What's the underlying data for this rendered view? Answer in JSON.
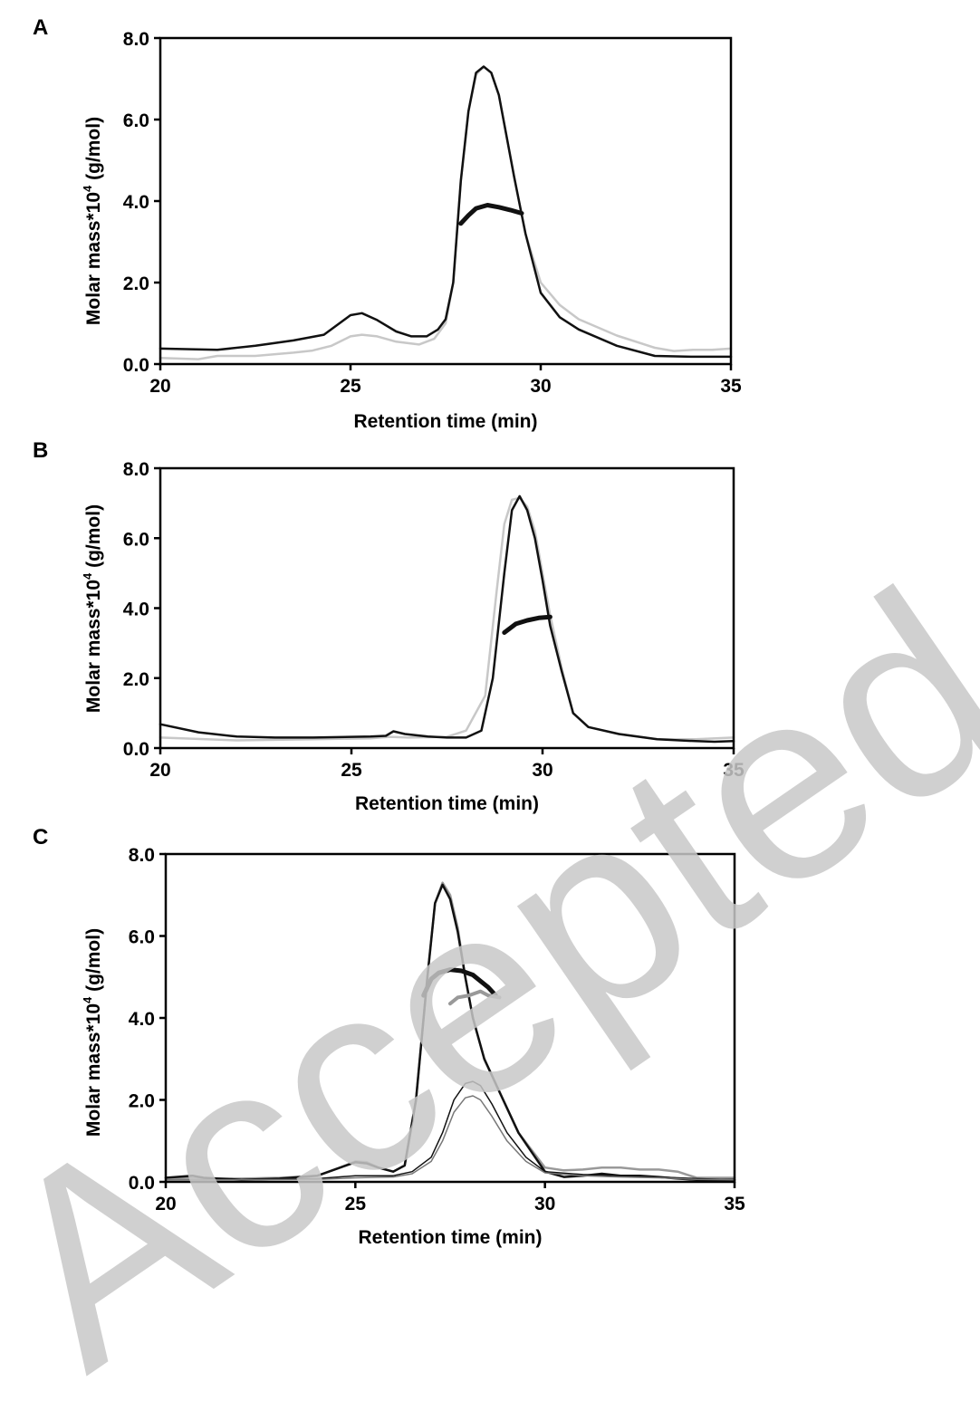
{
  "watermark": "Accepted Manuscript",
  "chart_data": [
    {
      "type": "line",
      "panel_label": "A",
      "xlabel": "Retention time (min)",
      "ylabel_main": "Molar mass*10",
      "ylabel_sup": "4",
      "ylabel_unit": " (g/mol)",
      "xlim": [
        20,
        35
      ],
      "ylim": [
        0,
        8
      ],
      "xticks": [
        20,
        25,
        30,
        35
      ],
      "xtick_labels": [
        "20",
        "25",
        "30",
        "35"
      ],
      "yticks": [
        0,
        2,
        4,
        6,
        8
      ],
      "ytick_labels": [
        "0.0",
        "2.0",
        "4.0",
        "6.0",
        "8.0"
      ],
      "series": [
        {
          "color": "#c8c8c8",
          "width": 2.5,
          "x": [
            20,
            21,
            21.5,
            22.5,
            23.5,
            24,
            24.5,
            25,
            25.3,
            25.7,
            26.2,
            26.8,
            27.2,
            27.5,
            27.7,
            27.9,
            28.1,
            28.3,
            28.5,
            28.7,
            28.9,
            29.1,
            29.3,
            29.6,
            30,
            30.5,
            31,
            32,
            33,
            33.5,
            34,
            34.5,
            35
          ],
          "y": [
            0.15,
            0.12,
            0.2,
            0.2,
            0.28,
            0.33,
            0.45,
            0.68,
            0.72,
            0.68,
            0.55,
            0.48,
            0.62,
            1.0,
            2.0,
            4.5,
            6.2,
            7.1,
            7.3,
            7.15,
            6.6,
            5.6,
            4.6,
            3.2,
            2.0,
            1.45,
            1.1,
            0.7,
            0.4,
            0.32,
            0.35,
            0.35,
            0.38
          ]
        },
        {
          "color": "#111111",
          "width": 2.5,
          "x": [
            20,
            21.5,
            22.5,
            23.5,
            24.3,
            25,
            25.3,
            25.7,
            26.2,
            26.6,
            27,
            27.3,
            27.5,
            27.7,
            27.9,
            28.1,
            28.3,
            28.5,
            28.7,
            28.9,
            29.1,
            29.3,
            29.6,
            30,
            30.5,
            31,
            32,
            33,
            34,
            35
          ],
          "y": [
            0.38,
            0.35,
            0.45,
            0.58,
            0.72,
            1.2,
            1.25,
            1.08,
            0.8,
            0.68,
            0.68,
            0.85,
            1.1,
            2.0,
            4.5,
            6.2,
            7.15,
            7.3,
            7.15,
            6.6,
            5.6,
            4.6,
            3.2,
            1.75,
            1.15,
            0.85,
            0.45,
            0.2,
            0.18,
            0.18
          ]
        },
        {
          "color": "#111111",
          "width": 5,
          "x": [
            27.9,
            28.1,
            28.3,
            28.6,
            28.9,
            29.2,
            29.5
          ],
          "y": [
            3.45,
            3.65,
            3.82,
            3.9,
            3.85,
            3.78,
            3.7
          ]
        }
      ]
    },
    {
      "type": "line",
      "panel_label": "B",
      "xlabel": "Retention time (min)",
      "ylabel_main": "Molar mass*10",
      "ylabel_sup": "4",
      "ylabel_unit": " (g/mol)",
      "xlim": [
        20,
        35
      ],
      "ylim": [
        0,
        8
      ],
      "xticks": [
        20,
        25,
        30,
        35
      ],
      "xtick_labels": [
        "20",
        "25",
        "30",
        "35"
      ],
      "yticks": [
        0,
        2,
        4,
        6,
        8
      ],
      "ytick_labels": [
        "0.0",
        "2.0",
        "4.0",
        "6.0",
        "8.0"
      ],
      "series": [
        {
          "color": "#c8c8c8",
          "width": 2.5,
          "x": [
            20,
            22,
            24,
            25.5,
            26,
            26.5,
            27.5,
            28,
            28.5,
            28.8,
            29,
            29.2,
            29.4,
            29.6,
            29.8,
            30,
            30.2,
            30.5,
            30.8,
            31.2,
            32,
            33,
            34,
            35
          ],
          "y": [
            0.3,
            0.22,
            0.25,
            0.28,
            0.32,
            0.3,
            0.32,
            0.5,
            1.5,
            4.5,
            6.4,
            7.1,
            7.15,
            6.9,
            6.2,
            5.0,
            3.8,
            2.3,
            1.0,
            0.6,
            0.4,
            0.25,
            0.25,
            0.3
          ]
        },
        {
          "color": "#111111",
          "width": 2.5,
          "x": [
            20,
            21,
            22,
            23,
            24,
            25.5,
            25.9,
            26.1,
            26.4,
            27,
            27.5,
            28,
            28.4,
            28.7,
            29,
            29.2,
            29.4,
            29.6,
            29.8,
            30,
            30.2,
            30.5,
            30.8,
            31.2,
            32,
            33,
            34,
            34.5,
            35
          ],
          "y": [
            0.68,
            0.45,
            0.33,
            0.3,
            0.3,
            0.33,
            0.35,
            0.48,
            0.4,
            0.33,
            0.3,
            0.3,
            0.5,
            2.0,
            5.0,
            6.8,
            7.2,
            6.8,
            6.0,
            4.8,
            3.5,
            2.2,
            1.0,
            0.6,
            0.4,
            0.25,
            0.2,
            0.18,
            0.2
          ]
        },
        {
          "color": "#111111",
          "width": 5,
          "x": [
            29.0,
            29.3,
            29.6,
            29.9,
            30.2
          ],
          "y": [
            3.3,
            3.55,
            3.65,
            3.72,
            3.75
          ]
        }
      ]
    },
    {
      "type": "line",
      "panel_label": "C",
      "xlabel": "Retention time (min)",
      "ylabel_main": "Molar mass*10",
      "ylabel_sup": "4",
      "ylabel_unit": " (g/mol)",
      "xlim": [
        20,
        35
      ],
      "ylim": [
        0,
        8
      ],
      "xticks": [
        20,
        25,
        30,
        35
      ],
      "xtick_labels": [
        "20",
        "25",
        "30",
        "35"
      ],
      "yticks": [
        0,
        2,
        4,
        6,
        8
      ],
      "ytick_labels": [
        "0.0",
        "2.0",
        "4.0",
        "6.0",
        "8.0"
      ],
      "series": [
        {
          "color": "#999999",
          "width": 2.5,
          "x": [
            20,
            21,
            22,
            23,
            24,
            24.6,
            25,
            25.3,
            25.6,
            26,
            26.3,
            26.6,
            26.9,
            27.1,
            27.3,
            27.5,
            27.7,
            27.9,
            28.1,
            28.4,
            28.8,
            29.3,
            30,
            30.5,
            31,
            31.5,
            32,
            32.5,
            33,
            33.5,
            34,
            35
          ],
          "y": [
            0.1,
            0.08,
            0.08,
            0.1,
            0.15,
            0.35,
            0.5,
            0.48,
            0.35,
            0.25,
            0.4,
            2.0,
            5.0,
            6.8,
            7.3,
            7.0,
            6.2,
            5.0,
            4.0,
            3.0,
            2.2,
            1.2,
            0.35,
            0.28,
            0.3,
            0.35,
            0.35,
            0.3,
            0.3,
            0.25,
            0.1,
            0.1
          ]
        },
        {
          "color": "#111111",
          "width": 2.5,
          "x": [
            20,
            20.7,
            21,
            22,
            23,
            24,
            24.6,
            25,
            25.3,
            25.6,
            26,
            26.3,
            26.6,
            26.9,
            27.1,
            27.3,
            27.5,
            27.7,
            27.9,
            28.1,
            28.4,
            28.8,
            29.3,
            30,
            30.5,
            31,
            31.5,
            32,
            32.5,
            33,
            33.5,
            34,
            35
          ],
          "y": [
            0.1,
            0.15,
            0.1,
            0.05,
            0.08,
            0.15,
            0.35,
            0.48,
            0.45,
            0.35,
            0.25,
            0.4,
            2.0,
            5.0,
            6.8,
            7.25,
            6.9,
            6.1,
            5.0,
            4.0,
            3.0,
            2.2,
            1.2,
            0.25,
            0.12,
            0.15,
            0.2,
            0.15,
            0.15,
            0.12,
            0.08,
            0.05,
            0.05
          ]
        },
        {
          "color": "#111111",
          "width": 1.5,
          "x": [
            20,
            22,
            24,
            25,
            26,
            26.5,
            27,
            27.3,
            27.6,
            27.9,
            28.1,
            28.3,
            28.6,
            29,
            29.5,
            30,
            31,
            32,
            33,
            34,
            35
          ],
          "y": [
            0.05,
            0.05,
            0.08,
            0.15,
            0.15,
            0.25,
            0.6,
            1.2,
            2.0,
            2.4,
            2.45,
            2.35,
            1.9,
            1.2,
            0.6,
            0.25,
            0.18,
            0.15,
            0.12,
            0.08,
            0.05
          ]
        },
        {
          "color": "#777777",
          "width": 1.5,
          "x": [
            20,
            22,
            24,
            25,
            26,
            26.5,
            27,
            27.3,
            27.6,
            27.9,
            28.1,
            28.3,
            28.6,
            29,
            29.5,
            30,
            31,
            32,
            33,
            34,
            35
          ],
          "y": [
            0.05,
            0.05,
            0.06,
            0.1,
            0.12,
            0.2,
            0.5,
            1.0,
            1.7,
            2.05,
            2.1,
            2.0,
            1.6,
            1.0,
            0.5,
            0.22,
            0.15,
            0.12,
            0.1,
            0.06,
            0.05
          ]
        },
        {
          "color": "#111111",
          "width": 5,
          "x": [
            26.8,
            27.0,
            27.2,
            27.5,
            27.8,
            28.1,
            28.3,
            28.5,
            28.7
          ],
          "y": [
            4.55,
            4.95,
            5.1,
            5.18,
            5.15,
            5.05,
            4.9,
            4.75,
            4.55
          ]
        },
        {
          "color": "#999999",
          "width": 4,
          "x": [
            27.5,
            27.7,
            28.0,
            28.3,
            28.5,
            28.8
          ],
          "y": [
            4.35,
            4.5,
            4.55,
            4.65,
            4.55,
            4.5
          ]
        }
      ]
    }
  ]
}
